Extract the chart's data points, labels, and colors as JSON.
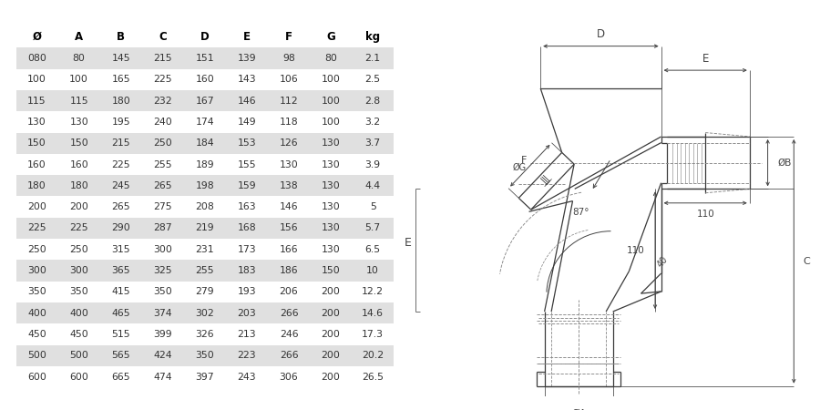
{
  "bg_color": "#ffffff",
  "table": {
    "headers": [
      "Ø",
      "A",
      "B",
      "C",
      "D",
      "E",
      "F",
      "G",
      "kg"
    ],
    "rows": [
      [
        "080",
        "80",
        "145",
        "215",
        "151",
        "139",
        "98",
        "80",
        "2.1"
      ],
      [
        "100",
        "100",
        "165",
        "225",
        "160",
        "143",
        "106",
        "100",
        "2.5"
      ],
      [
        "115",
        "115",
        "180",
        "232",
        "167",
        "146",
        "112",
        "100",
        "2.8"
      ],
      [
        "130",
        "130",
        "195",
        "240",
        "174",
        "149",
        "118",
        "100",
        "3.2"
      ],
      [
        "150",
        "150",
        "215",
        "250",
        "184",
        "153",
        "126",
        "130",
        "3.7"
      ],
      [
        "160",
        "160",
        "225",
        "255",
        "189",
        "155",
        "130",
        "130",
        "3.9"
      ],
      [
        "180",
        "180",
        "245",
        "265",
        "198",
        "159",
        "138",
        "130",
        "4.4"
      ],
      [
        "200",
        "200",
        "265",
        "275",
        "208",
        "163",
        "146",
        "130",
        "5"
      ],
      [
        "225",
        "225",
        "290",
        "287",
        "219",
        "168",
        "156",
        "130",
        "5.7"
      ],
      [
        "250",
        "250",
        "315",
        "300",
        "231",
        "173",
        "166",
        "130",
        "6.5"
      ],
      [
        "300",
        "300",
        "365",
        "325",
        "255",
        "183",
        "186",
        "150",
        "10"
      ],
      [
        "350",
        "350",
        "415",
        "350",
        "279",
        "193",
        "206",
        "200",
        "12.2"
      ],
      [
        "400",
        "400",
        "465",
        "374",
        "302",
        "203",
        "266",
        "200",
        "14.6"
      ],
      [
        "450",
        "450",
        "515",
        "399",
        "326",
        "213",
        "246",
        "200",
        "17.3"
      ],
      [
        "500",
        "500",
        "565",
        "424",
        "350",
        "223",
        "266",
        "200",
        "20.2"
      ],
      [
        "600",
        "600",
        "665",
        "474",
        "397",
        "243",
        "306",
        "200",
        "26.5"
      ]
    ],
    "shaded_rows": [
      0,
      2,
      4,
      6,
      8,
      10,
      12,
      14
    ],
    "shade_color": "#e0e0e0",
    "text_color": "#333333",
    "header_text_color": "#000000"
  },
  "diagram": {
    "line_color": "#3a3a3a",
    "dim_color": "#444444",
    "dashed_color": "#888888"
  }
}
